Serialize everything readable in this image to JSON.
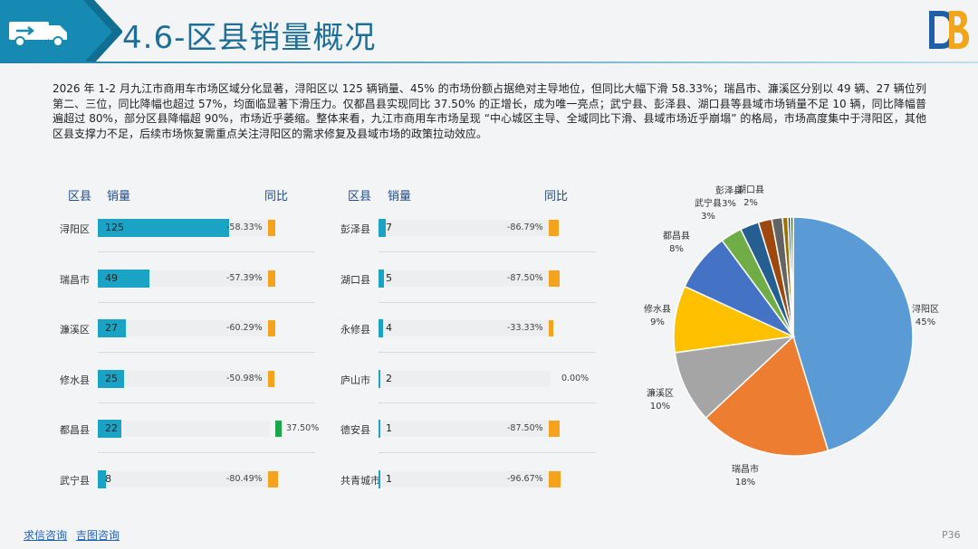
{
  "header": {
    "title": "4.6-区县销量概况"
  },
  "intro": "2026 年 1-2 月九江市商用车市场区域分化显著，浔阳区以 125 辆销量、45% 的市场份额占据绝对主导地位，但同比大幅下滑 58.33%；瑞昌市、濂溪区分别以 49 辆、27 辆位列第二、三位，同比降幅也超过 57%，均面临显著下滑压力。仅都昌县实现同比 37.50% 的正增长，成为唯一亮点；武宁县、彭泽县、湖口县等县域市场销量不足 10 辆，同比降幅普遍超过 80%，部分区县降幅超 90%，市场近乎萎缩。整体来看，九江市商用车市场呈现 “中心城区主导、全域同比下滑、县域市场近乎崩塌” 的格局，市场高度集中于浔阳区，其他区县支撑力不足，后续市场恢复需重点关注浔阳区的需求修复及县域市场的政策拉动效应。",
  "table_headers": {
    "district": "区县",
    "sales": "销量",
    "yoy": "同比"
  },
  "colors": {
    "sales_bar": "#1aa3c5",
    "yoy_negative": "#f5a21c",
    "yoy_positive": "#18a84a",
    "title": "#1f6e98"
  },
  "chart_data": [
    {
      "type": "bar",
      "title": "",
      "categories": [
        "浔阳区",
        "瑞昌市",
        "濂溪区",
        "修水县",
        "都昌县",
        "武宁县"
      ],
      "series": [
        {
          "name": "销量",
          "values": [
            125,
            49,
            27,
            25,
            22,
            8
          ]
        },
        {
          "name": "同比",
          "values": [
            -58.33,
            -57.39,
            -60.29,
            -50.98,
            37.5,
            -80.49
          ]
        }
      ],
      "yoy_labels": [
        "-58.33%",
        "-57.39%",
        "-60.29%",
        "-50.98%",
        "37.50%",
        "-80.49%"
      ]
    },
    {
      "type": "bar",
      "title": "",
      "categories": [
        "彭泽县",
        "湖口县",
        "永修县",
        "庐山市",
        "德安县",
        "共青城市"
      ],
      "series": [
        {
          "name": "销量",
          "values": [
            7,
            5,
            4,
            2,
            1,
            1
          ]
        },
        {
          "name": "同比",
          "values": [
            -86.79,
            -87.5,
            -33.33,
            0.0,
            -87.5,
            -96.67
          ]
        }
      ],
      "yoy_labels": [
        "-86.79%",
        "-87.50%",
        "-33.33%",
        "0.00%",
        "-87.50%",
        "-96.67%"
      ]
    },
    {
      "type": "pie",
      "title": "",
      "labels": [
        "浔阳区",
        "瑞昌市",
        "濂溪区",
        "修水县",
        "都昌县",
        "武宁县",
        "彭泽县",
        "湖口县",
        "永修县",
        "庐山市",
        "德安县",
        "共青城市"
      ],
      "values": [
        125,
        49,
        27,
        25,
        22,
        8,
        7,
        5,
        4,
        2,
        1,
        1
      ],
      "percent_labels": [
        "45%",
        "18%",
        "10%",
        "9%",
        "8%",
        "3%",
        "3%",
        "2%",
        "",
        "",
        "",
        ""
      ],
      "colors": [
        "#5b9bd5",
        "#ed7d31",
        "#a5a5a5",
        "#ffc000",
        "#4472c4",
        "#70ad47",
        "#255e91",
        "#9e480e",
        "#636363",
        "#997300",
        "#264478",
        "#43682b"
      ]
    }
  ],
  "footer": {
    "link1": "求信咨询",
    "link2": "吉图咨询",
    "page": "P36"
  }
}
